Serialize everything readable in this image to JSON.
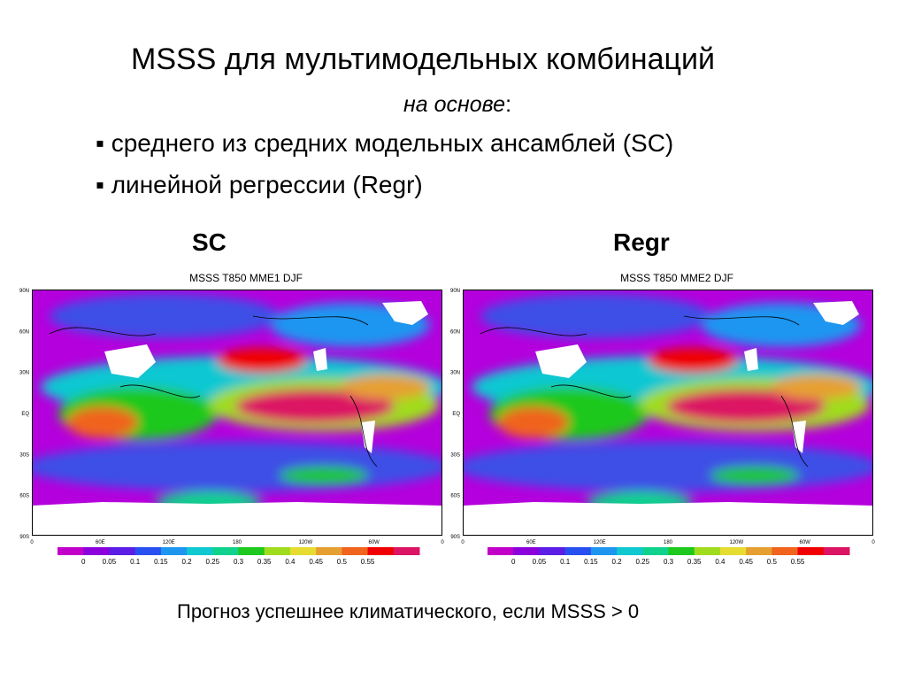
{
  "title": "MSSS для мультимодельных комбинаций",
  "subtitle": [
    "на основе",
    ":"
  ],
  "bullets": [
    "среднего из средних модельных ансамблей (SC)",
    "линейной регрессии (Regr)"
  ],
  "panels": [
    {
      "label": "SC",
      "map_title": "MSSS T850 MME1 DJF"
    },
    {
      "label": "Regr",
      "map_title": "MSSS T850 MME2 DJF"
    }
  ],
  "lat_labels": [
    "90N",
    "60N",
    "30N",
    "EQ",
    "30S",
    "60S",
    "90S"
  ],
  "lon_labels": [
    "0",
    "60E",
    "120E",
    "180",
    "120W",
    "60W",
    "0"
  ],
  "colorbar": {
    "labels": [
      0,
      0.05,
      0.1,
      0.15,
      0.2,
      0.25,
      0.3,
      0.35,
      0.4,
      0.45,
      0.5,
      0.55
    ],
    "colors": [
      "#c000c8",
      "#8c00dc",
      "#5a1ee6",
      "#2850f0",
      "#1e96f0",
      "#10c8d2",
      "#10d28c",
      "#1ec81e",
      "#a0dc1e",
      "#e6dc32",
      "#e6a032",
      "#f0641e",
      "#f00000",
      "#dc1464"
    ]
  },
  "footer": "Прогноз успешнее климатического, если  MSSS > 0"
}
